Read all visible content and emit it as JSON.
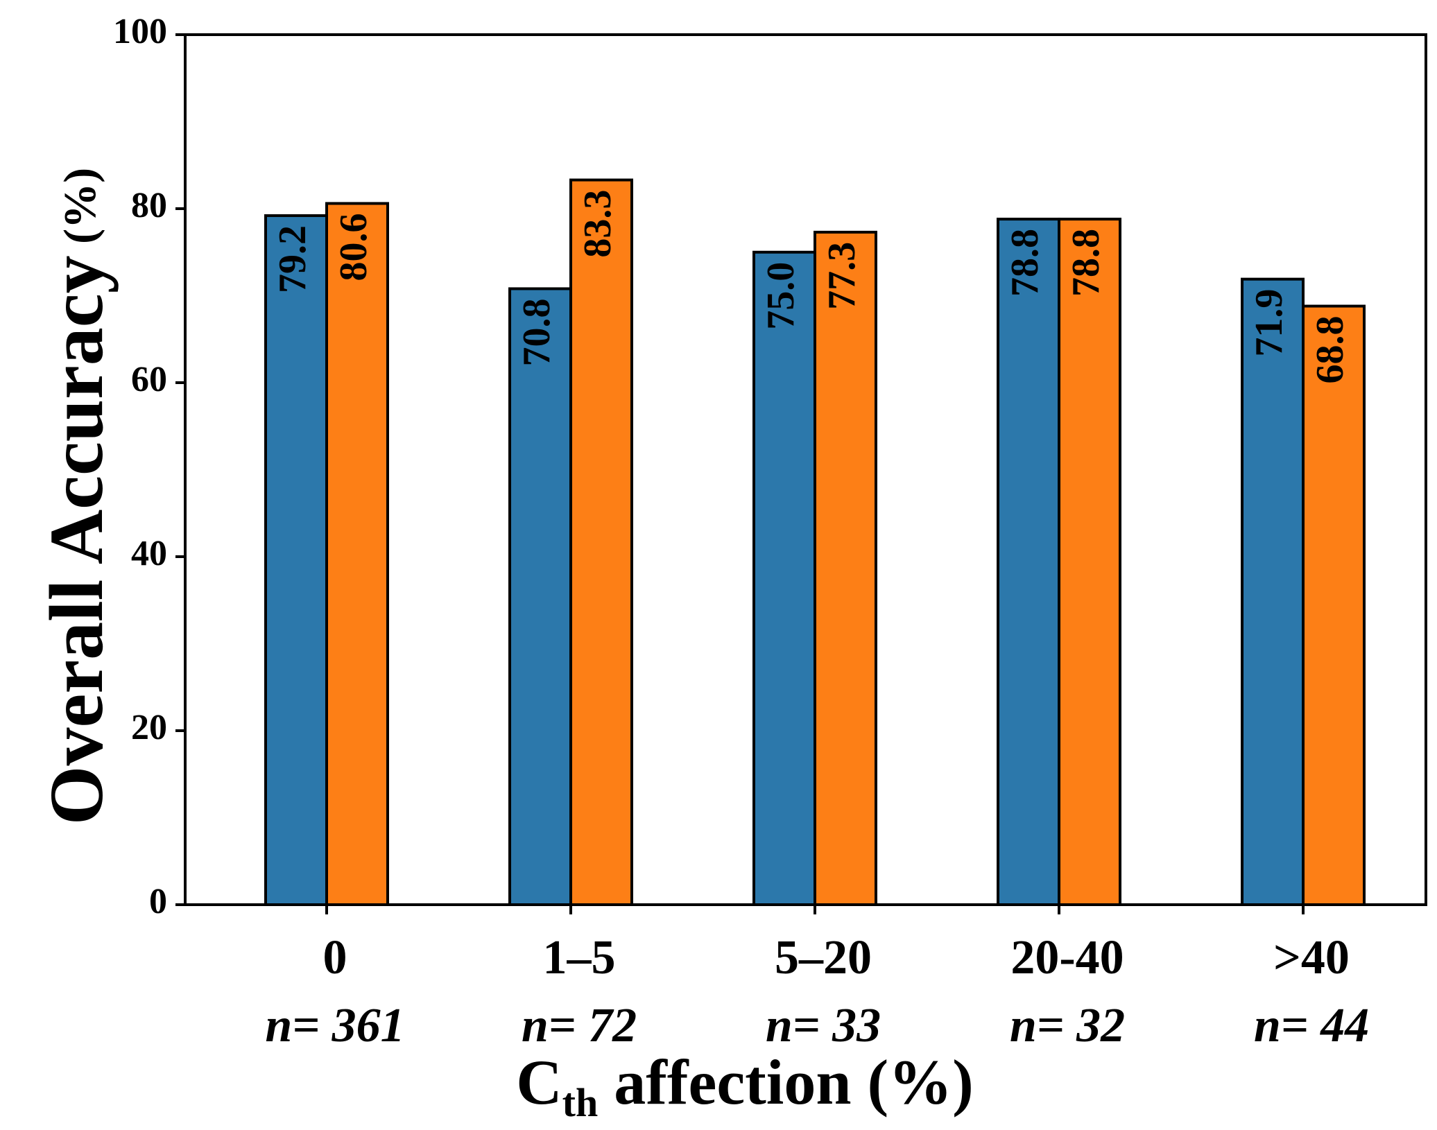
{
  "chart_data": {
    "type": "bar",
    "categories": [
      "0",
      "1–5",
      "5–20",
      "20-40",
      ">40"
    ],
    "sample_sizes": [
      "n= 361",
      "n= 72",
      "n= 33",
      "n= 32",
      "n= 44"
    ],
    "series": [
      {
        "values": [
          79.2,
          70.8,
          75.0,
          78.8,
          71.9
        ],
        "value_labels": [
          "79.2",
          "70.8",
          "75.0",
          "78.8",
          "71.9"
        ],
        "color": "#2c78ab"
      },
      {
        "values": [
          80.6,
          83.3,
          77.3,
          78.8,
          68.8
        ],
        "value_labels": [
          "80.6",
          "83.3",
          "77.3",
          "78.8",
          "68.8"
        ],
        "color": "#fd7f16"
      }
    ],
    "ylabel": {
      "main": "Overall Accuracy",
      "unit": " (%)"
    },
    "xlabel": {
      "c": "C",
      "sub": "th",
      "rest": " affection (%)"
    },
    "ylim": [
      0,
      100
    ],
    "yticks": [
      0,
      20,
      40,
      60,
      80,
      100
    ],
    "ytick_labels": [
      "0",
      "20",
      "40",
      "60",
      "80",
      "100"
    ],
    "grid": false,
    "legend": "none"
  }
}
